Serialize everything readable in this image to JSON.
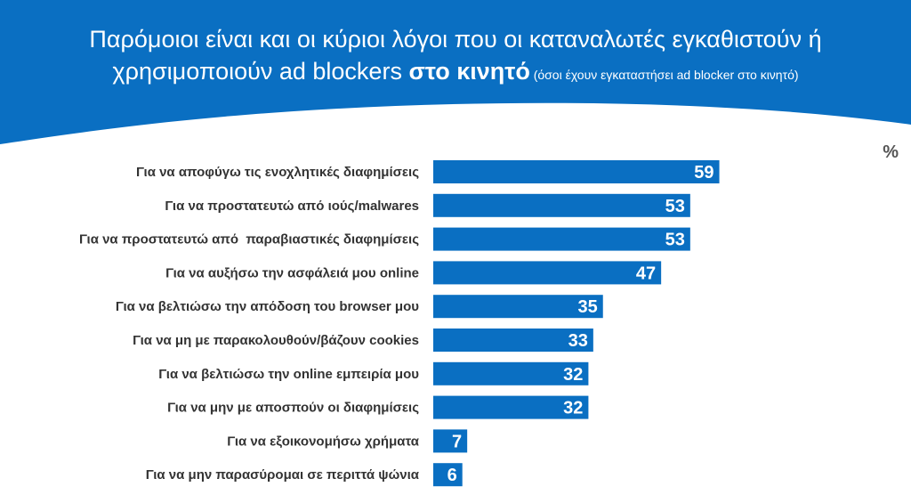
{
  "title": {
    "line1": "Παρόμοιοι είναι και οι κύριοι λόγοι που οι καταναλωτές εγκαθιστούν ή",
    "line2_prefix": "χρησιμοποιούν ad blockers ",
    "line2_bold": "στο κινητό",
    "line2_note": " (όσοι έχουν εγκαταστήσει ad blocker στο κινητό)"
  },
  "unit_label": "%",
  "colors": {
    "header": "#0a6fc2",
    "bar": "#0a6fc2",
    "bar_label": "#ffffff",
    "category_label": "#333333"
  },
  "chart_data": {
    "type": "bar",
    "orientation": "horizontal",
    "categories": [
      "Για να αποφύγω τις ενοχλητικές διαφημίσεις",
      "Για να προστατευτώ από ιούς/malwares",
      "Για να προστατευτώ από  παραβιαστικές διαφημίσεις",
      "Για να αυξήσω την ασφάλειά μου online",
      "Για να βελτιώσω την απόδοση του browser μου",
      "Για να μη με παρακολουθούν/βάζουν cookies",
      "Για να βελτιώσω την online εμπειρία μου",
      "Για να μην με αποσπούν οι διαφημίσεις",
      "Για να εξοικονομήσω χρήματα",
      "Για να μην παρασύρομαι σε περιττά ψώνια"
    ],
    "values": [
      59,
      53,
      53,
      47,
      35,
      33,
      32,
      32,
      7,
      6
    ],
    "data_labels": true,
    "xlim": [
      0,
      100
    ],
    "grid": false,
    "legend": "none"
  }
}
